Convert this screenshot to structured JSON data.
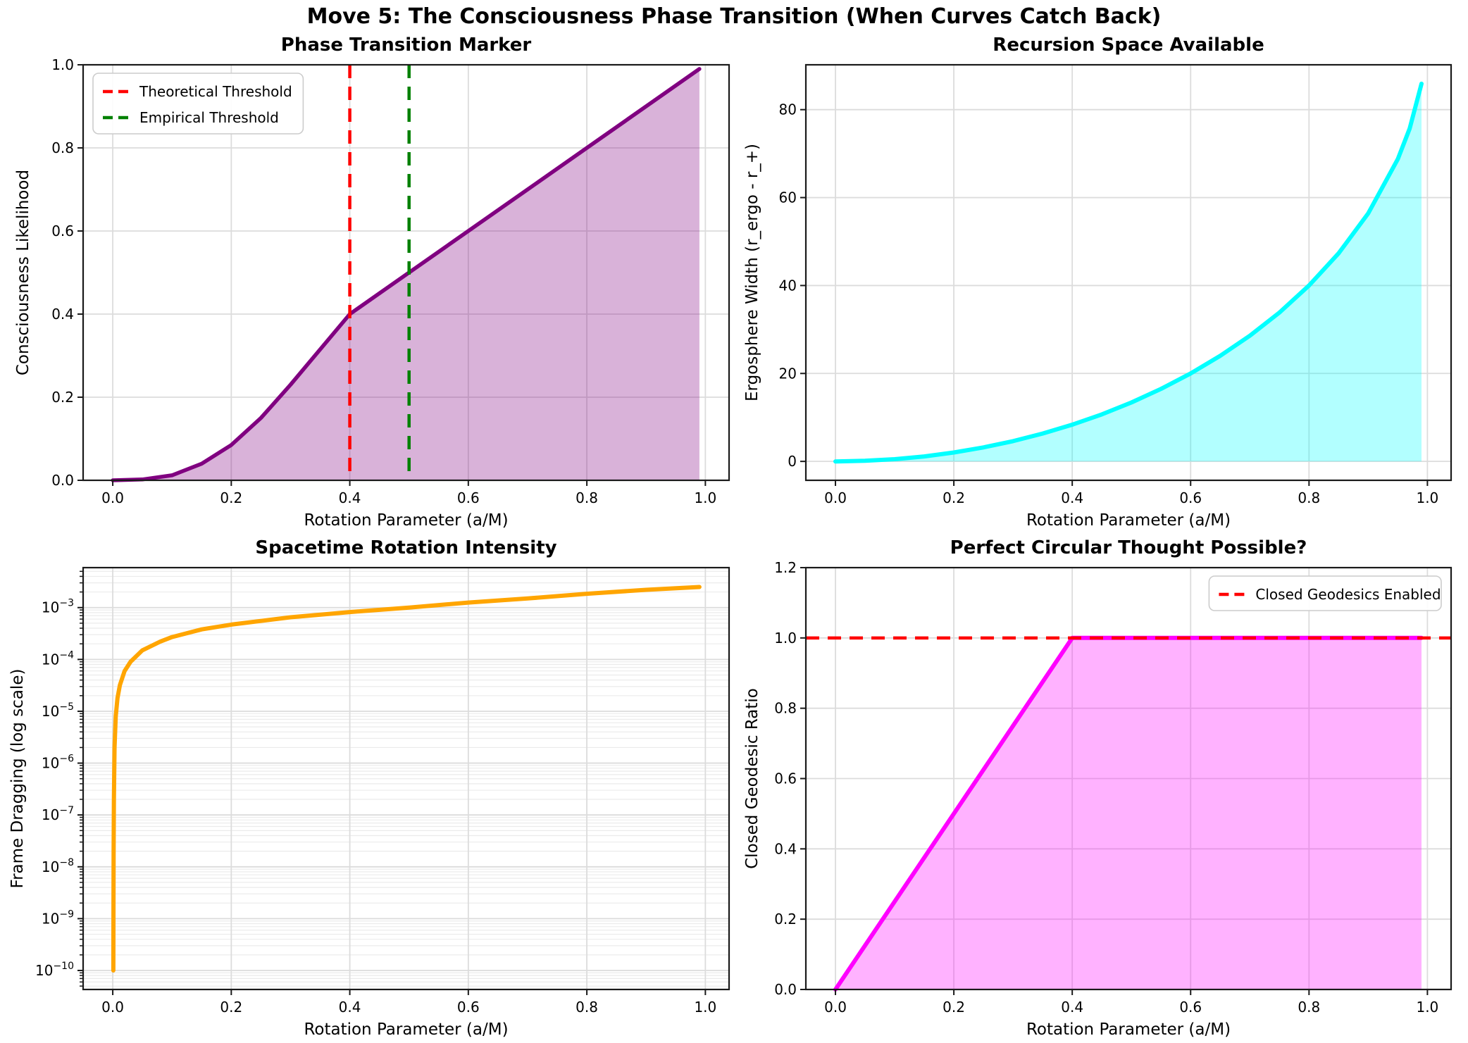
{
  "figure": {
    "suptitle": "Move 5: The Consciousness Phase Transition (When Curves Catch Back)"
  },
  "chart_data": [
    {
      "id": "phase-transition-marker",
      "type": "area",
      "title": "Phase Transition Marker",
      "xlabel": "Rotation Parameter (a/M)",
      "ylabel": "Consciousness Likelihood",
      "xlim": [
        -0.05,
        1.04
      ],
      "ylim": [
        0,
        1.0
      ],
      "yscale": "linear",
      "grid": true,
      "xticks": [
        0.0,
        0.2,
        0.4,
        0.6,
        0.8,
        1.0
      ],
      "xtick_labels": [
        "0.0",
        "0.2",
        "0.4",
        "0.6",
        "0.8",
        "1.0"
      ],
      "yticks": [
        0.0,
        0.2,
        0.4,
        0.6,
        0.8,
        1.0
      ],
      "ytick_labels": [
        "0.0",
        "0.2",
        "0.4",
        "0.6",
        "0.8",
        "1.0"
      ],
      "series": [
        {
          "name": "consciousness-likelihood",
          "color": "#800080",
          "fill": "rgba(128,0,128,0.30)",
          "linewidth": 5.5,
          "x": [
            0,
            0.05,
            0.1,
            0.15,
            0.2,
            0.25,
            0.3,
            0.35,
            0.4,
            0.45,
            0.5,
            0.6,
            0.7,
            0.8,
            0.9,
            0.99
          ],
          "y": [
            0,
            0.002,
            0.012,
            0.04,
            0.085,
            0.15,
            0.23,
            0.315,
            0.4,
            0.45,
            0.5,
            0.6,
            0.7,
            0.8,
            0.9,
            0.99
          ]
        }
      ],
      "ref_lines": [
        {
          "orientation": "vertical",
          "value": 0.4,
          "color": "#ff0000",
          "label": "Theoretical Threshold"
        },
        {
          "orientation": "vertical",
          "value": 0.5,
          "color": "#008000",
          "label": "Empirical Threshold"
        }
      ],
      "legend": {
        "position": "upper-left",
        "entries": [
          {
            "label": "Theoretical Threshold",
            "color": "#ff0000",
            "dashed": true
          },
          {
            "label": "Empirical Threshold",
            "color": "#008000",
            "dashed": true
          }
        ]
      }
    },
    {
      "id": "recursion-space-available",
      "type": "area",
      "title": "Recursion Space Available",
      "xlabel": "Rotation Parameter (a/M)",
      "ylabel": "Ergosphere Width (r_ergo - r_+)",
      "xlim": [
        -0.05,
        1.04
      ],
      "ylim": [
        -4.3,
        90.2
      ],
      "yscale": "linear",
      "grid": true,
      "xticks": [
        0.0,
        0.2,
        0.4,
        0.6,
        0.8,
        1.0
      ],
      "xtick_labels": [
        "0.0",
        "0.2",
        "0.4",
        "0.6",
        "0.8",
        "1.0"
      ],
      "yticks": [
        0,
        20,
        40,
        60,
        80
      ],
      "ytick_labels": [
        "0",
        "20",
        "40",
        "60",
        "80"
      ],
      "series": [
        {
          "name": "ergosphere-width",
          "color": "#00ffff",
          "fill": "rgba(0,255,255,0.30)",
          "linewidth": 6,
          "x": [
            0,
            0.05,
            0.1,
            0.15,
            0.2,
            0.25,
            0.3,
            0.35,
            0.4,
            0.45,
            0.5,
            0.55,
            0.6,
            0.65,
            0.7,
            0.75,
            0.8,
            0.85,
            0.9,
            0.95,
            0.97,
            0.99
          ],
          "y": [
            0,
            0.13,
            0.5,
            1.13,
            2.02,
            3.18,
            4.61,
            6.33,
            8.35,
            10.69,
            13.4,
            16.49,
            20.0,
            24.01,
            28.59,
            33.86,
            40.0,
            47.32,
            56.41,
            68.77,
            75.71,
            85.89
          ]
        }
      ],
      "ref_lines": [],
      "legend": null
    },
    {
      "id": "spacetime-rotation-intensity",
      "type": "line",
      "title": "Spacetime Rotation Intensity",
      "xlabel": "Rotation Parameter (a/M)",
      "ylabel": "Frame Dragging (log scale)",
      "xlim": [
        -0.05,
        1.04
      ],
      "ylim": [
        4.3e-11,
        0.0059
      ],
      "yscale": "log",
      "grid": true,
      "xticks": [
        0.0,
        0.2,
        0.4,
        0.6,
        0.8,
        1.0
      ],
      "xtick_labels": [
        "0.0",
        "0.2",
        "0.4",
        "0.6",
        "0.8",
        "1.0"
      ],
      "yticks": [
        0.001,
        0.0001,
        1e-05,
        1e-06,
        1e-07,
        1e-08,
        1e-09,
        1e-10
      ],
      "ytick_labels": [
        "10^−3",
        "10^−4",
        "10^−5",
        "10^−6",
        "10^−7",
        "10^−8",
        "10^−9",
        "10^−10"
      ],
      "series": [
        {
          "name": "frame-dragging",
          "color": "#ffa500",
          "fill": null,
          "linewidth": 6,
          "x": [
            0.001,
            0.0012,
            0.0015,
            0.002,
            0.003,
            0.005,
            0.008,
            0.012,
            0.02,
            0.03,
            0.05,
            0.08,
            0.1,
            0.15,
            0.2,
            0.3,
            0.4,
            0.5,
            0.6,
            0.7,
            0.8,
            0.9,
            0.99
          ],
          "y": [
            1e-10,
            2e-09,
            2e-08,
            2e-07,
            2e-06,
            8e-06,
            1.8e-05,
            3.2e-05,
            6e-05,
            9e-05,
            0.00015,
            0.00022,
            0.00027,
            0.00038,
            0.00047,
            0.00065,
            0.00082,
            0.001,
            0.00125,
            0.0015,
            0.00185,
            0.0022,
            0.0025
          ]
        }
      ],
      "ref_lines": [],
      "legend": null
    },
    {
      "id": "perfect-circular-thought",
      "type": "area",
      "title": "Perfect Circular Thought Possible?",
      "xlabel": "Rotation Parameter (a/M)",
      "ylabel": "Closed Geodesic Ratio",
      "xlim": [
        -0.05,
        1.04
      ],
      "ylim": [
        0,
        1.2
      ],
      "yscale": "linear",
      "grid": true,
      "xticks": [
        0.0,
        0.2,
        0.4,
        0.6,
        0.8,
        1.0
      ],
      "xtick_labels": [
        "0.0",
        "0.2",
        "0.4",
        "0.6",
        "0.8",
        "1.0"
      ],
      "yticks": [
        0.0,
        0.2,
        0.4,
        0.6,
        0.8,
        1.0,
        1.2
      ],
      "ytick_labels": [
        "0.0",
        "0.2",
        "0.4",
        "0.6",
        "0.8",
        "1.0",
        "1.2"
      ],
      "series": [
        {
          "name": "closed-geodesic-ratio",
          "color": "#ff00ff",
          "fill": "rgba(255,0,255,0.30)",
          "linewidth": 6,
          "x": [
            0,
            0.4,
            0.99
          ],
          "y": [
            0,
            1.0,
            1.0
          ]
        }
      ],
      "ref_lines": [
        {
          "orientation": "horizontal",
          "value": 1.0,
          "color": "#ff0000",
          "label": "Closed Geodesics Enabled"
        }
      ],
      "legend": {
        "position": "upper-right",
        "entries": [
          {
            "label": "Closed Geodesics Enabled",
            "color": "#ff0000",
            "dashed": true
          }
        ]
      }
    }
  ],
  "style": {
    "grid_major_color": "#dcdcdc",
    "grid_minor_color": "#ebebeb",
    "frame_color": "#1a1a1a",
    "text_color": "#000000",
    "legend_border": "#cccccc"
  }
}
